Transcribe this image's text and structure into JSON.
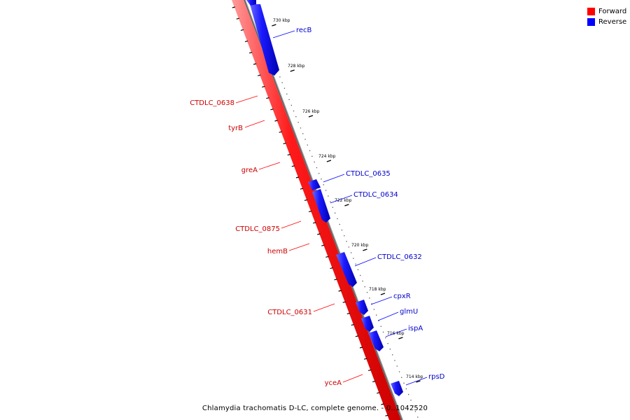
{
  "caption": "Chlamydia trachomatis D-LC, complete genome. - 0..1042520",
  "legend": [
    {
      "label": "Forward",
      "color": "#ff0000"
    },
    {
      "label": "Reverse",
      "color": "#0000ff"
    }
  ],
  "colors": {
    "forward": "#ff0000",
    "reverse": "#0000ff",
    "backbone": "#808080"
  },
  "tick_labels": [
    "730 kbp",
    "728 kbp",
    "726 kbp",
    "724 kbp",
    "722 kbp",
    "720 kbp",
    "718 kbp",
    "716 kbp",
    "714 kbp"
  ],
  "forward_genes": [
    "CTDLC_0638",
    "tyrB",
    "greA",
    "CTDLC_0875",
    "hemB",
    "CTDLC_0631",
    "yceA"
  ],
  "reverse_genes": [
    "recB",
    "CTDLC_0635",
    "CTDLC_0634",
    "CTDLC_0632",
    "cpxR",
    "glmU",
    "ispA",
    "rpsD"
  ]
}
